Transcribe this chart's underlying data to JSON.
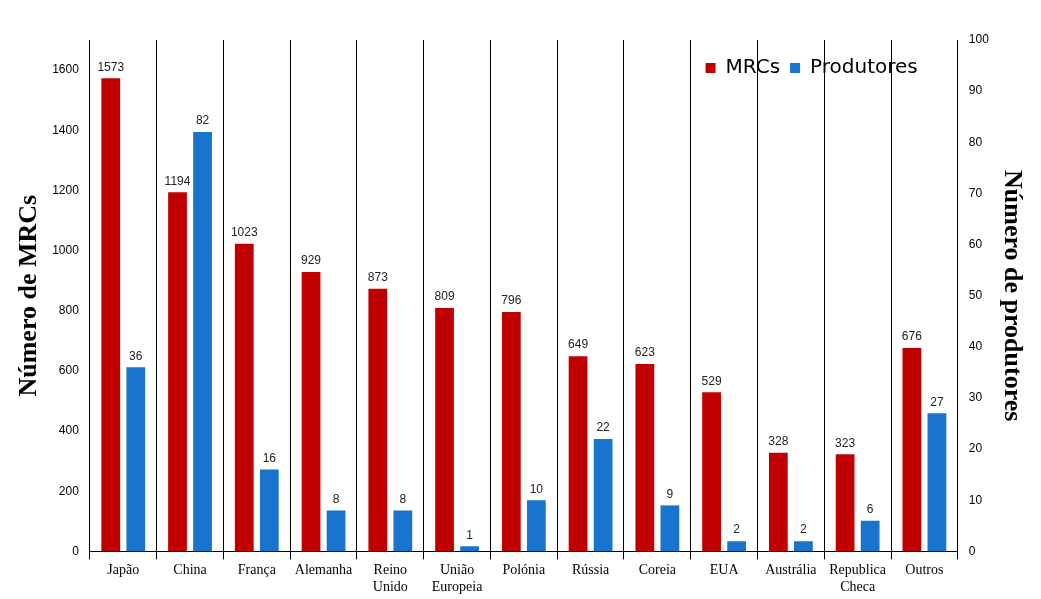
{
  "chart_data": {
    "type": "bar",
    "ylabel": "Número de MRCs",
    "y2label": "Número de produtores",
    "categories": [
      "Japão",
      "China",
      "França",
      "Alemanha",
      "Reino Unido",
      "União Europeia",
      "Polónia",
      "Rússia",
      "Coreia",
      "EUA",
      "Austrália",
      "Republica Checa",
      "Outros"
    ],
    "series": [
      {
        "name": "MRCs",
        "color": "#c00000",
        "values": [
          1573,
          1194,
          1023,
          929,
          873,
          809,
          796,
          649,
          623,
          529,
          328,
          323,
          676
        ]
      },
      {
        "name": "Produtores",
        "color": "#1874cd",
        "axis": "y2",
        "values": [
          36,
          82,
          16,
          8,
          8,
          1,
          10,
          22,
          9,
          2,
          2,
          6,
          27
        ]
      }
    ],
    "ylim": [
      0,
      1700
    ],
    "yticks": [
      0,
      200,
      400,
      600,
      800,
      1000,
      1200,
      1400,
      1600
    ],
    "y2lim": [
      0,
      100
    ],
    "y2ticks": [
      0,
      10,
      20,
      30,
      40,
      50,
      60,
      70,
      80,
      90,
      100
    ],
    "grid": "x",
    "legend": "top right",
    "data_labels": true
  }
}
